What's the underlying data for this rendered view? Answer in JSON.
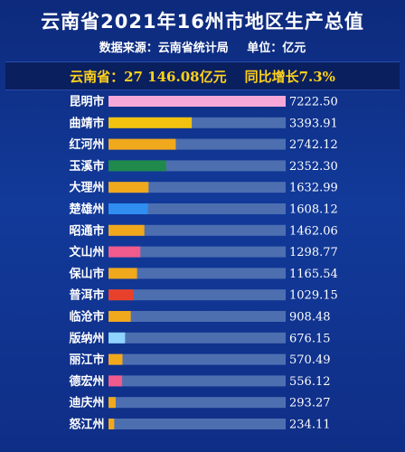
{
  "header": {
    "title": "云南省2021年16州市地区生产总值",
    "source": "数据来源：云南省统计局",
    "unit": "单位：亿元"
  },
  "banner": {
    "total": "云南省：27 146.08亿元",
    "growth": "同比增长7.3%"
  },
  "colors": {
    "track": "#4d6fb0",
    "highlight_text": "#ffd21a"
  },
  "chart_data": {
    "type": "bar",
    "orientation": "horizontal",
    "categories": [
      "昆明市",
      "曲靖市",
      "红河州",
      "玉溪市",
      "大理州",
      "楚雄州",
      "昭通市",
      "文山州",
      "保山市",
      "普洱市",
      "临沧市",
      "版纳州",
      "丽江市",
      "德宏州",
      "迪庆州",
      "怒江州"
    ],
    "values": [
      7222.5,
      3393.91,
      2742.12,
      2352.3,
      1632.99,
      1608.12,
      1462.06,
      1298.77,
      1165.54,
      1029.15,
      908.48,
      676.15,
      570.49,
      556.12,
      293.27,
      234.11
    ],
    "value_labels": [
      "7222.50",
      "3393.91",
      "2742.12",
      "2352.30",
      "1632.99",
      "1608.12",
      "1462.06",
      "1298.77",
      "1165.54",
      "1029.15",
      "908.48",
      "676.15",
      "570.49",
      "556.12",
      "293.27",
      "234.11"
    ],
    "bar_colors": [
      "#f7a8d8",
      "#f2c20f",
      "#f0a81d",
      "#1f8a4c",
      "#f0a81d",
      "#2f8ef0",
      "#f0a81d",
      "#ef5b8c",
      "#f0a81d",
      "#e8412b",
      "#f0a81d",
      "#8fd3ff",
      "#f0a81d",
      "#ef5b8c",
      "#f0a81d",
      "#f0a81d"
    ],
    "xlim": [
      0,
      7222.5
    ],
    "unit": "亿元"
  }
}
